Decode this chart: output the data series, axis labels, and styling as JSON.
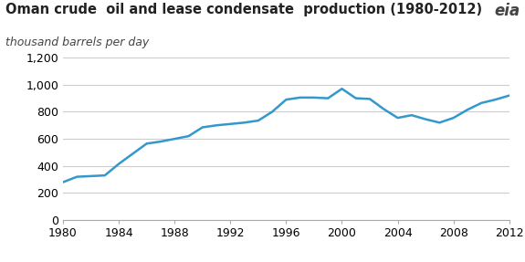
{
  "title": "Oman crude  oil and lease condensate  production (1980-2012)",
  "subtitle": "thousand barrels per day",
  "line_color": "#3399cc",
  "background_color": "#ffffff",
  "years": [
    1980,
    1981,
    1982,
    1983,
    1984,
    1985,
    1986,
    1987,
    1988,
    1989,
    1990,
    1991,
    1992,
    1993,
    1994,
    1995,
    1996,
    1997,
    1998,
    1999,
    2000,
    2001,
    2002,
    2003,
    2004,
    2005,
    2006,
    2007,
    2008,
    2009,
    2010,
    2011,
    2012
  ],
  "values": [
    280,
    320,
    325,
    330,
    415,
    490,
    565,
    580,
    600,
    620,
    685,
    700,
    710,
    720,
    735,
    800,
    890,
    905,
    905,
    900,
    970,
    900,
    895,
    820,
    755,
    775,
    745,
    720,
    755,
    815,
    865,
    890,
    920
  ],
  "xlim": [
    1980,
    2012
  ],
  "ylim": [
    0,
    1200
  ],
  "yticks": [
    0,
    200,
    400,
    600,
    800,
    1000,
    1200
  ],
  "xticks": [
    1980,
    1984,
    1988,
    1992,
    1996,
    2000,
    2004,
    2008,
    2012
  ],
  "grid_color": "#cccccc",
  "line_width": 1.8,
  "title_fontsize": 10.5,
  "subtitle_fontsize": 9,
  "tick_fontsize": 9
}
